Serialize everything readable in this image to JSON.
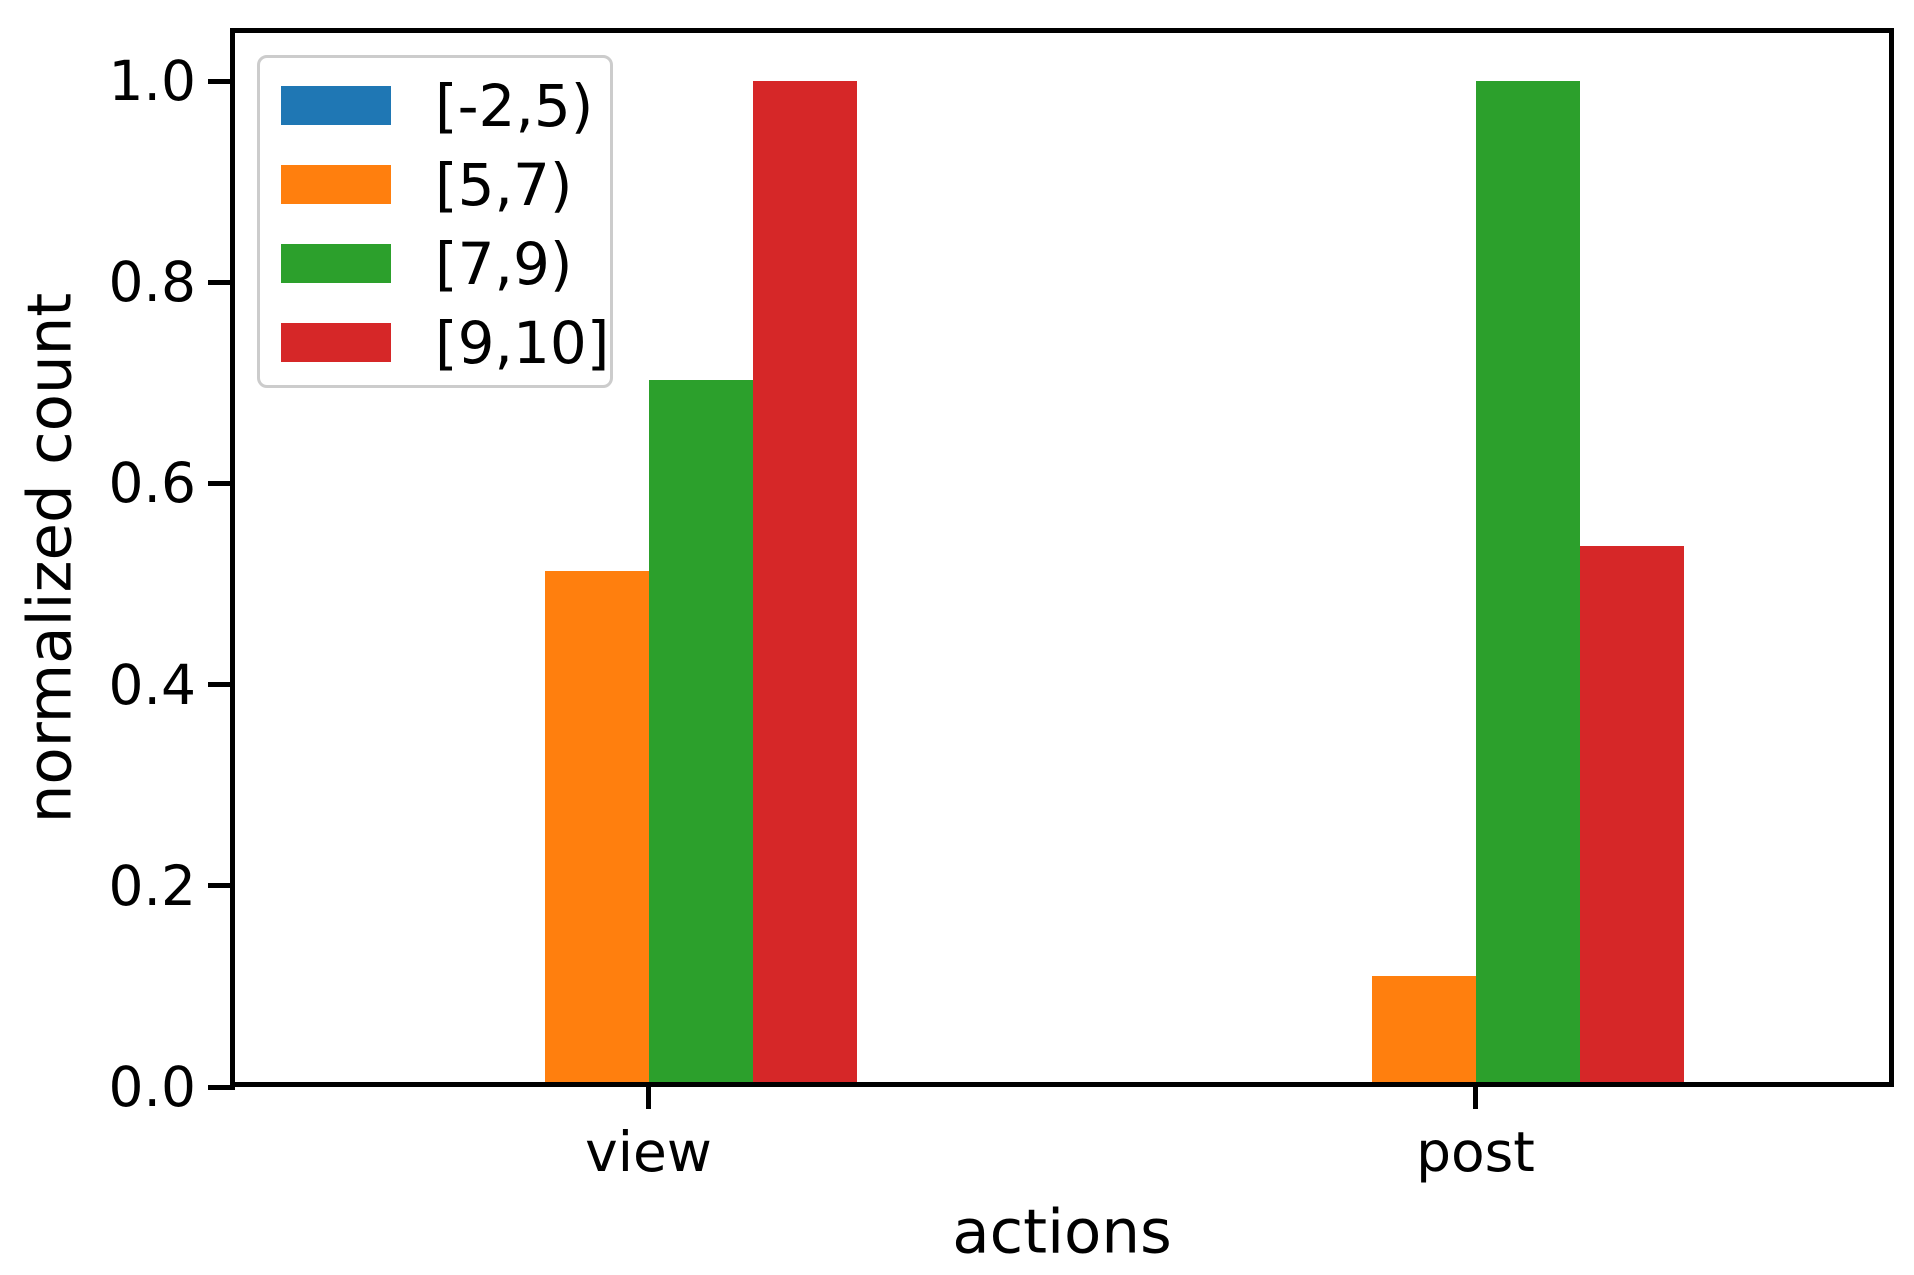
{
  "chart_data": {
    "type": "bar",
    "title": "",
    "xlabel": "actions",
    "ylabel": "normalized count",
    "categories": [
      "view",
      "post"
    ],
    "series": [
      {
        "name": "[-2,5)",
        "color": "#1f77b4",
        "values": [
          0,
          0
        ]
      },
      {
        "name": "[5,7)",
        "color": "#ff7f0e",
        "values": [
          0.513,
          0.11
        ]
      },
      {
        "name": "[7,9)",
        "color": "#2ca02c",
        "values": [
          0.703,
          1.0
        ]
      },
      {
        "name": "[9,10]",
        "color": "#d62728",
        "values": [
          1.0,
          0.538
        ]
      }
    ],
    "y_ticks": [
      "0.0",
      "0.2",
      "0.4",
      "0.6",
      "0.8",
      "1.0"
    ],
    "ylim": [
      0,
      1.05
    ],
    "xlim": [
      -0.5,
      1.5
    ],
    "grid": false,
    "legend_position": "upper left",
    "axis_color": "#000000",
    "background_color": "#ffffff",
    "legend_border_color": "#cccccc"
  }
}
